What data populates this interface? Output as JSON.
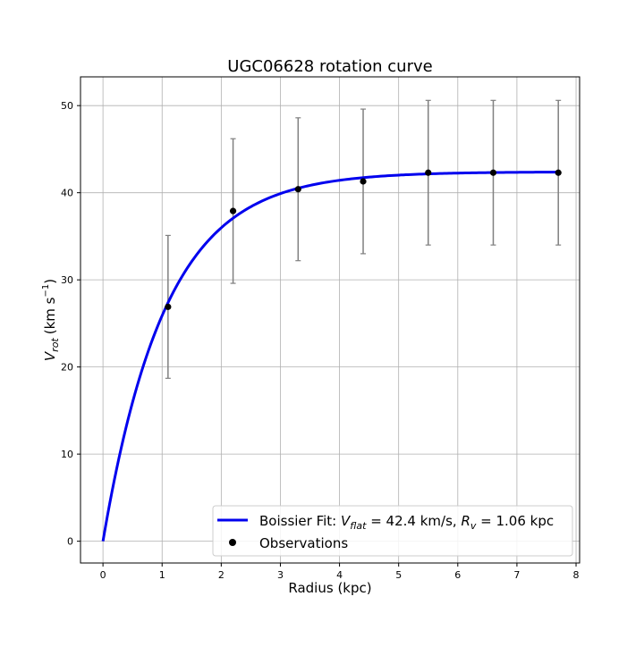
{
  "chart_data": {
    "type": "scatter",
    "title": "UGC06628 rotation curve",
    "xlabel": "Radius (kpc)",
    "ylabel_main": "V",
    "ylabel_sub": "rot",
    "ylabel_unit": "(km s",
    "ylabel_exp": "−1",
    "ylabel_close": ")",
    "xlim": [
      -0.38,
      8.06
    ],
    "ylim": [
      -2.5,
      53.3
    ],
    "xticks": [
      0,
      1,
      2,
      3,
      4,
      5,
      6,
      7,
      8
    ],
    "yticks": [
      0,
      10,
      20,
      30,
      40,
      50
    ],
    "grid": true,
    "legend_position": "lower right",
    "fit": {
      "model": "boissier",
      "vflat": 42.4,
      "rv": 1.06,
      "x_range": [
        0,
        7.7
      ],
      "color": "#0000ee",
      "legend_parts": [
        "Boissier Fit: ",
        "V",
        "flat",
        " = 42.4 km/s, ",
        "R",
        "v",
        " = 1.06 kpc"
      ]
    },
    "observations": {
      "name": "Observations",
      "color": "#000000",
      "errorbar_color": "#808080",
      "x": [
        1.1,
        2.2,
        3.3,
        4.4,
        5.5,
        6.6,
        7.7
      ],
      "y": [
        26.9,
        37.9,
        40.4,
        41.3,
        42.3,
        42.3,
        42.3
      ],
      "yerr": [
        8.2,
        8.3,
        8.2,
        8.3,
        8.3,
        8.3,
        8.3
      ]
    }
  }
}
